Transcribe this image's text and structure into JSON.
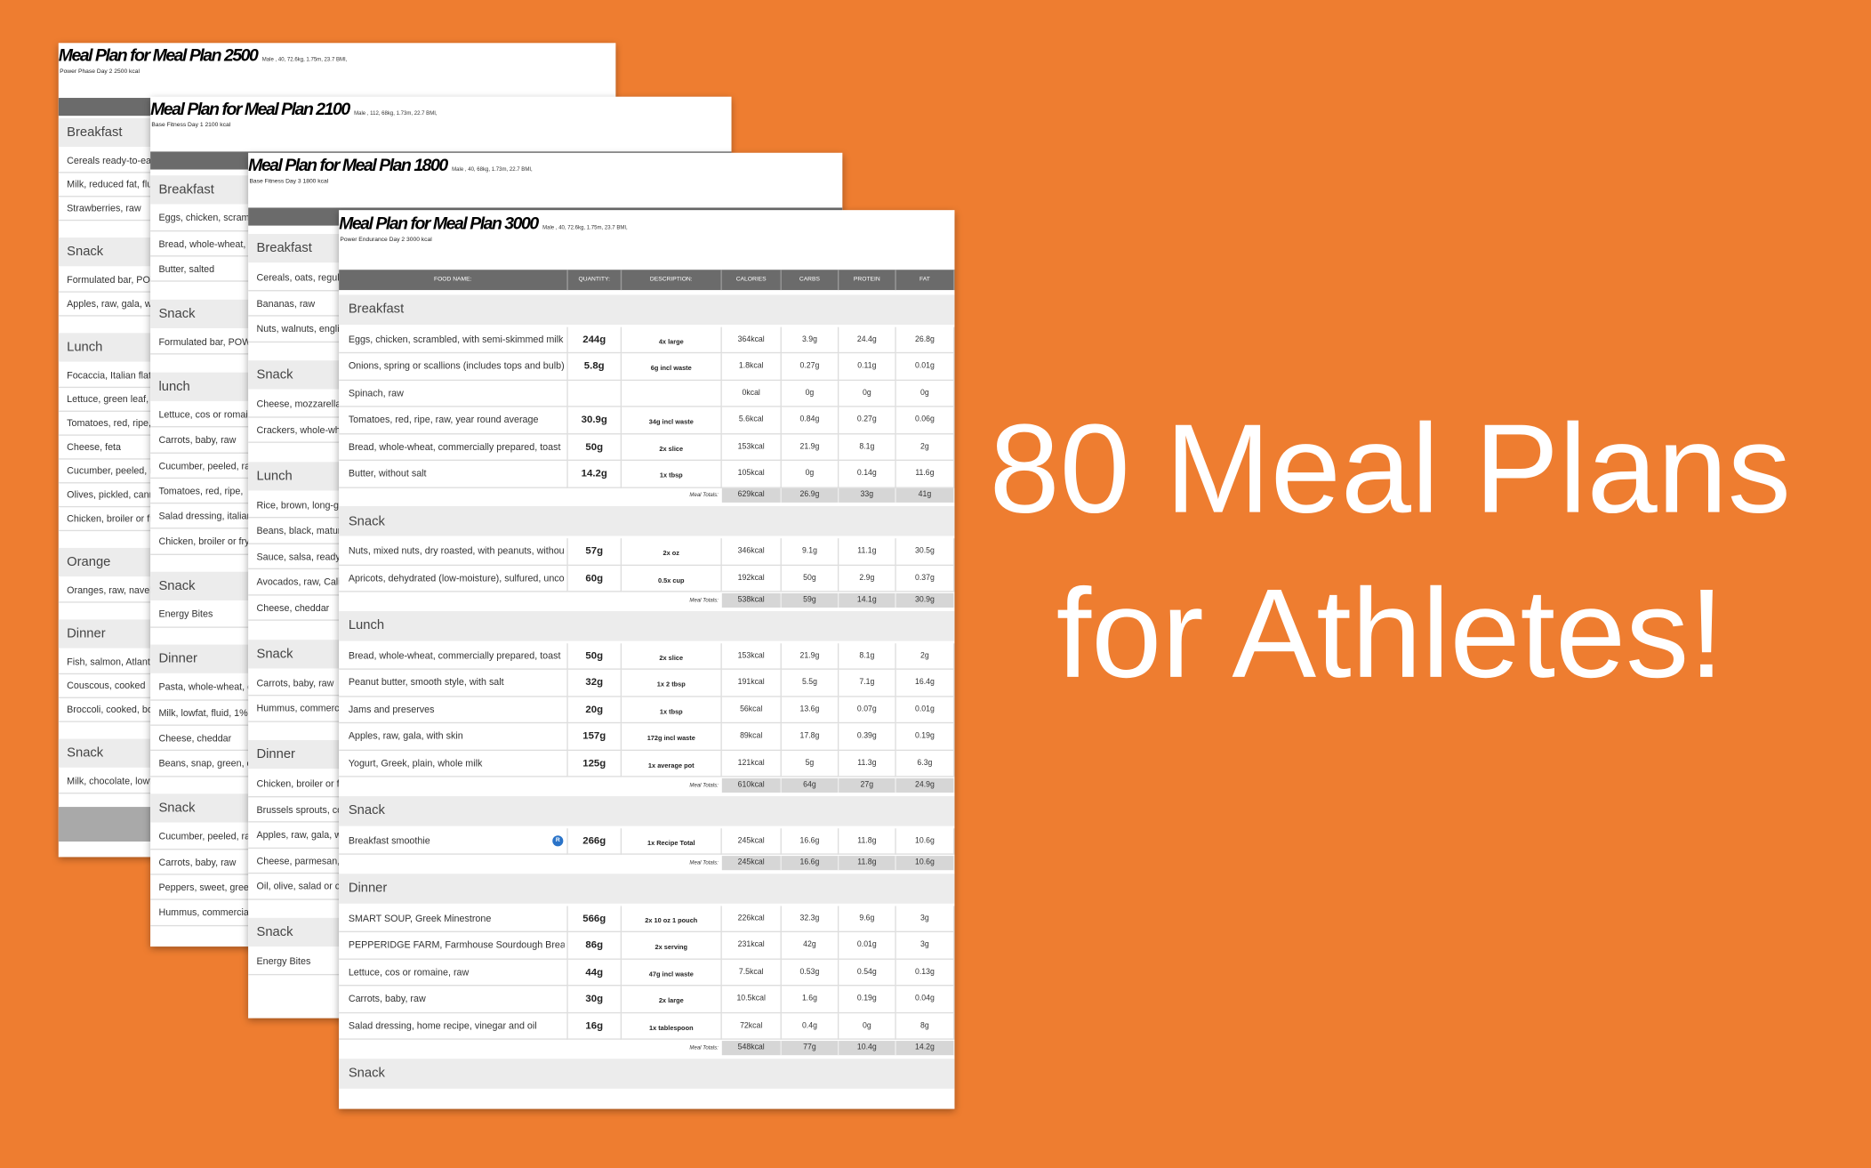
{
  "headline": {
    "line1": "80 Meal Plans",
    "line2": "for Athletes!"
  },
  "back_sheets": [
    {
      "title": "Meal Plan for Meal Plan 2500",
      "meta": "Male , 40, 72.6kg, 1.75m, 23.7 BMI,",
      "subtitle": "Power Phase Day 2 2500 kcal",
      "sections": [
        {
          "name": "Breakfast",
          "items": [
            "Cereals ready-to-eat,",
            "Milk, reduced fat, fluid",
            "Strawberries, raw"
          ]
        },
        {
          "name": "Snack",
          "items": [
            "Formulated bar, POWE",
            "Apples, raw, gala, with"
          ]
        },
        {
          "name": "Lunch",
          "items": [
            "Focaccia, Italian flatb",
            "Lettuce, green leaf, ra",
            "Tomatoes, red, ripe, ra",
            "Cheese, feta",
            "Cucumber, peeled, ra",
            "Olives, pickled, canne",
            "Chicken, broiler or fry"
          ]
        },
        {
          "name": "Orange",
          "items": [
            "Oranges, raw, navels"
          ]
        },
        {
          "name": "Dinner",
          "items": [
            "Fish, salmon, Atlantic",
            "Couscous, cooked",
            "Broccoli, cooked, boil"
          ]
        },
        {
          "name": "Snack",
          "items": [
            "Milk, chocolate, lowfa"
          ]
        }
      ]
    },
    {
      "title": "Meal Plan for Meal Plan 2100",
      "meta": "Male , 112, 68kg, 1.73m, 22.7 BMI,",
      "subtitle": "Base Fitness Day 1 2100 kcal",
      "sections": [
        {
          "name": "Breakfast",
          "items": [
            "Eggs, chicken, scramb",
            "Bread, whole-wheat, c",
            "Butter, salted"
          ]
        },
        {
          "name": "Snack",
          "items": [
            "Formulated bar, POWE"
          ]
        },
        {
          "name": "lunch",
          "items": [
            "Lettuce, cos or romain",
            "Carrots, baby, raw",
            "Cucumber, peeled, raw",
            "Tomatoes, red, ripe,",
            "Salad dressing, italian",
            "Chicken, broiler or frye"
          ]
        },
        {
          "name": "Snack",
          "items": [
            "Energy Bites"
          ]
        },
        {
          "name": "Dinner",
          "items": [
            "Pasta, whole-wheat, c",
            "Milk, lowfat, fluid, 1% m",
            "Cheese, cheddar",
            "Beans, snap, green, c"
          ]
        },
        {
          "name": "Snack",
          "items": [
            "Cucumber, peeled, raw",
            "Carrots, baby, raw",
            "Peppers, sweet, green,",
            "Hummus, commercial"
          ]
        }
      ]
    },
    {
      "title": "Meal Plan for Meal Plan 1800",
      "meta": "Male , 40, 68kg, 1.73m, 22.7 BMI,",
      "subtitle": "Base Fitness Day 3 1800 kcal",
      "sections": [
        {
          "name": "Breakfast",
          "items": [
            "Cereals, oats, regula",
            "Bananas, raw",
            "Nuts, walnuts, englis"
          ]
        },
        {
          "name": "Snack",
          "items": [
            "Cheese, mozzarella,",
            "Crackers, whole-whe"
          ]
        },
        {
          "name": "Lunch",
          "items": [
            "Rice, brown, long-gr",
            "Beans, black, matur",
            "Sauce, salsa, ready-",
            "Avocados, raw, Calif",
            "Cheese, cheddar"
          ]
        },
        {
          "name": "Snack",
          "items": [
            "Carrots, baby, raw",
            "Hummus, commerc"
          ]
        },
        {
          "name": "Dinner",
          "items": [
            "Chicken, broiler or f",
            "Brussels sprouts, co",
            "Apples, raw, gala, w",
            "Cheese, parmesan,",
            "Oil, olive, salad or c"
          ]
        },
        {
          "name": "Snack",
          "items": [
            "Energy Bites"
          ]
        }
      ]
    }
  ],
  "front_sheet": {
    "title": "Meal Plan for Meal Plan 3000",
    "meta": "Male , 40, 72.6kg, 1.75m, 23.7 BMI,",
    "subtitle": "Power Endurance Day 2 3000 kcal",
    "columns": [
      "FOOD NAME:",
      "QUANTITY:",
      "DESCRIPTION:",
      "CALORIES",
      "CARBS",
      "PROTEIN",
      "FAT"
    ],
    "totals_label": "Meal Totals:",
    "sections": [
      {
        "name": "Breakfast",
        "rows": [
          {
            "cells": [
              "Eggs, chicken, scrambled, with semi-skimmed milk",
              "244g",
              "4x large",
              "364kcal",
              "3.9g",
              "24.4g",
              "26.8g"
            ]
          },
          {
            "cells": [
              "Onions, spring or scallions (includes tops and bulb)",
              "5.8g",
              "6g incl waste",
              "1.8kcal",
              "0.27g",
              "0.11g",
              "0.01g"
            ]
          },
          {
            "cells": [
              "Spinach, raw",
              null,
              null,
              "0kcal",
              "0g",
              "0g",
              "0g"
            ]
          },
          {
            "cells": [
              "Tomatoes, red, ripe, raw, year round average",
              "30.9g",
              "34g incl waste",
              "5.6kcal",
              "0.84g",
              "0.27g",
              "0.06g"
            ]
          },
          {
            "cells": [
              "Bread, whole-wheat, commercially prepared, toast",
              "50g",
              "2x slice",
              "153kcal",
              "21.9g",
              "8.1g",
              "2g"
            ]
          },
          {
            "cells": [
              "Butter, without salt",
              "14.2g",
              "1x tbsp",
              "105kcal",
              "0g",
              "0.14g",
              "11.6g"
            ]
          }
        ],
        "totals": [
          "629kcal",
          "26.9g",
          "33g",
          "41g"
        ]
      },
      {
        "name": "Snack",
        "rows": [
          {
            "cells": [
              "Nuts, mixed nuts, dry roasted, with peanuts, without salt",
              "57g",
              "2x oz",
              "346kcal",
              "9.1g",
              "11.1g",
              "30.5g"
            ]
          },
          {
            "cells": [
              "Apricots, dehydrated (low-moisture), sulfured, uncooked",
              "60g",
              "0.5x cup",
              "192kcal",
              "50g",
              "2.9g",
              "0.37g"
            ]
          }
        ],
        "totals": [
          "538kcal",
          "59g",
          "14.1g",
          "30.9g"
        ]
      },
      {
        "name": "Lunch",
        "rows": [
          {
            "cells": [
              "Bread, whole-wheat, commercially prepared, toast",
              "50g",
              "2x slice",
              "153kcal",
              "21.9g",
              "8.1g",
              "2g"
            ]
          },
          {
            "cells": [
              "Peanut butter, smooth style, with salt",
              "32g",
              "1x 2 tbsp",
              "191kcal",
              "5.5g",
              "7.1g",
              "16.4g"
            ]
          },
          {
            "cells": [
              "Jams and preserves",
              "20g",
              "1x tbsp",
              "56kcal",
              "13.6g",
              "0.07g",
              "0.01g"
            ]
          },
          {
            "cells": [
              "Apples, raw, gala, with skin",
              "157g",
              "172g incl waste",
              "89kcal",
              "17.8g",
              "0.39g",
              "0.19g"
            ]
          },
          {
            "cells": [
              "Yogurt, Greek, plain, whole milk",
              "125g",
              "1x average pot",
              "121kcal",
              "5g",
              "11.3g",
              "6.3g"
            ]
          }
        ],
        "totals": [
          "610kcal",
          "64g",
          "27g",
          "24.9g"
        ]
      },
      {
        "name": "Snack",
        "rows": [
          {
            "cells": [
              "Breakfast smoothie",
              "266g",
              "1x Recipe Total",
              "245kcal",
              "16.6g",
              "11.8g",
              "10.6g"
            ],
            "badge": "R"
          }
        ],
        "totals": [
          "245kcal",
          "16.6g",
          "11.8g",
          "10.6g"
        ]
      },
      {
        "name": "Dinner",
        "rows": [
          {
            "cells": [
              "SMART SOUP, Greek Minestrone",
              "566g",
              "2x 10 oz 1 pouch",
              "226kcal",
              "32.3g",
              "9.6g",
              "3g"
            ]
          },
          {
            "cells": [
              "PEPPERIDGE FARM, Farmhouse Sourdough Bread",
              "86g",
              "2x serving",
              "231kcal",
              "42g",
              "0.01g",
              "3g"
            ]
          },
          {
            "cells": [
              "Lettuce, cos or romaine, raw",
              "44g",
              "47g incl waste",
              "7.5kcal",
              "0.53g",
              "0.54g",
              "0.13g"
            ]
          },
          {
            "cells": [
              "Carrots, baby, raw",
              "30g",
              "2x large",
              "10.5kcal",
              "1.6g",
              "0.19g",
              "0.04g"
            ]
          },
          {
            "cells": [
              "Salad dressing, home recipe, vinegar and oil",
              "16g",
              "1x tablespoon",
              "72kcal",
              "0.4g",
              "0g",
              "8g"
            ]
          }
        ],
        "totals": [
          "548kcal",
          "77g",
          "10.4g",
          "14.2g"
        ]
      },
      {
        "name": "Snack"
      }
    ]
  }
}
